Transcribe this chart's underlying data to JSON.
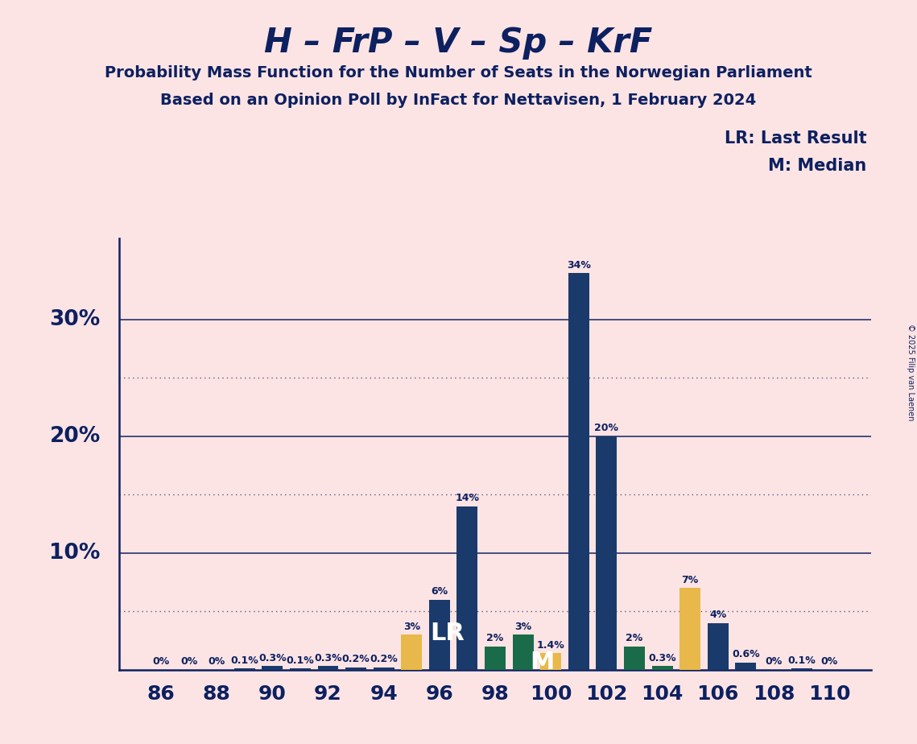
{
  "title": "H – FrP – V – Sp – KrF",
  "subtitle1": "Probability Mass Function for the Number of Seats in the Norwegian Parliament",
  "subtitle2": "Based on an Opinion Poll by InFact for Nettavisen, 1 February 2024",
  "copyright": "© 2025 Filip van Laenen",
  "background_color": "#fce4e4",
  "text_color": "#0d2060",
  "bar_color_blue": "#1a3a6b",
  "bar_color_yellow": "#e8b84b",
  "bar_color_green": "#1a6b4a",
  "lr_seat": 96,
  "median_seat": 100,
  "seats": [
    86,
    87,
    88,
    89,
    90,
    91,
    92,
    93,
    94,
    95,
    96,
    97,
    98,
    99,
    100,
    101,
    102,
    103,
    104,
    105,
    106,
    107,
    108,
    109,
    110
  ],
  "probabilities": [
    0.0,
    0.0,
    0.0,
    0.1,
    0.3,
    0.1,
    0.3,
    0.2,
    0.2,
    3.0,
    6.0,
    14.0,
    2.0,
    3.0,
    1.4,
    34.0,
    20.0,
    2.0,
    0.3,
    7.0,
    4.0,
    0.6,
    0.0,
    0.1,
    0.0
  ],
  "bar_colors": [
    "#1a3a6b",
    "#1a3a6b",
    "#1a3a6b",
    "#1a3a6b",
    "#1a3a6b",
    "#1a3a6b",
    "#1a3a6b",
    "#1a3a6b",
    "#1a3a6b",
    "#e8b84b",
    "#1a3a6b",
    "#1a3a6b",
    "#1a6b4a",
    "#1a6b4a",
    "#e8b84b",
    "#1a3a6b",
    "#1a3a6b",
    "#1a6b4a",
    "#1a6b4a",
    "#e8b84b",
    "#1a3a6b",
    "#1a3a6b",
    "#1a3a6b",
    "#1a3a6b",
    "#1a3a6b"
  ],
  "percent_labels": [
    "0%",
    "0%",
    "0%",
    "0.1%",
    "0.3%",
    "0.1%",
    "0.3%",
    "0.2%",
    "0.2%",
    "3%",
    "6%",
    "14%",
    "2%",
    "3%",
    "1.4%",
    "34%",
    "20%",
    "2%",
    "0.3%",
    "7%",
    "4%",
    "0.6%",
    "0%",
    "0.1%",
    "0%"
  ],
  "solid_yticks": [
    10,
    20,
    30
  ],
  "dotted_yticks": [
    5,
    15,
    25
  ],
  "ylim": [
    0,
    37
  ],
  "xlim": [
    84.5,
    111.5
  ],
  "ytick_labels_pos": [
    10,
    20,
    30
  ],
  "ytick_labels_text": [
    "10%",
    "20%",
    "30%"
  ]
}
